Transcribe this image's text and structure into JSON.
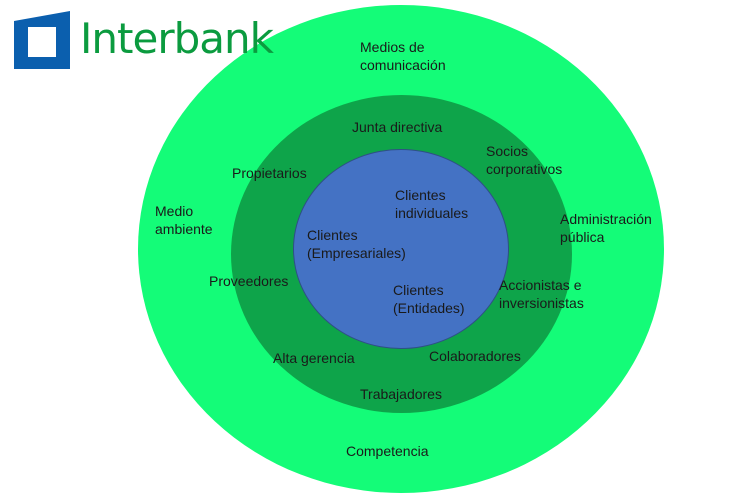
{
  "logo": {
    "text": "Interbank",
    "colors": {
      "mark": "#0b5fae",
      "text": "#0b9b3f"
    }
  },
  "diagram": {
    "colors": {
      "outer": "#14fc78",
      "middle": "#0ea44a",
      "inner": "#4472c4"
    },
    "outer_ring_labels": {
      "medios": "Medios de\ncomunicación",
      "medio_ambiente": "Medio\nambiente",
      "administracion": "Administración\npública",
      "competencia": "Competencia"
    },
    "middle_ring_labels": {
      "junta": "Junta directiva",
      "socios": "Socios\ncorporativos",
      "propietarios": "Propietarios",
      "proveedores": "Proveedores",
      "accionistas": "Accionistas e\ninversionistas",
      "alta_gerencia": "Alta gerencia",
      "colaboradores": "Colaboradores",
      "trabajadores": "Trabajadores"
    },
    "inner_circle_labels": {
      "individuales": "Clientes\nindividuales",
      "empresariales": "Clientes\n(Empresariales)",
      "entidades": "Clientes\n(Entidades)"
    }
  }
}
